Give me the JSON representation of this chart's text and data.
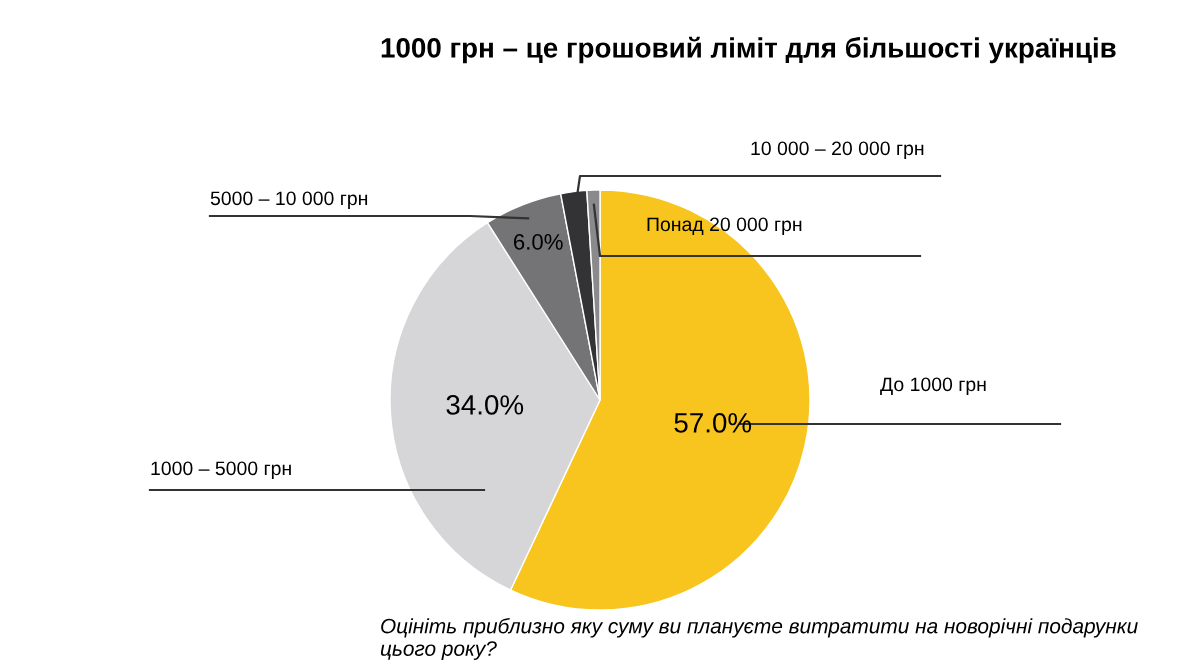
{
  "chart_data": {
    "type": "pie",
    "title": "1000 грн – це грошовий ліміт для більшості українців",
    "categories": [
      "До 1000 грн",
      "1000 – 5000 грн",
      "5000 – 10 000 грн",
      "10 000 – 20 000 грн",
      "Понад 20 000 грн"
    ],
    "values": [
      57.0,
      34.0,
      6.0,
      2.0,
      1.0
    ],
    "colors": [
      "#f7c51e",
      "#d6d6d8",
      "#747476",
      "#333335",
      "#8a8a8c"
    ],
    "value_labels": [
      "57.0%",
      "34.0%",
      "6.0%",
      null,
      null
    ],
    "annotations": [
      "Оцініть приблизно яку суму ви плануєте витратити на новорічні подарунки цього року?"
    ]
  }
}
